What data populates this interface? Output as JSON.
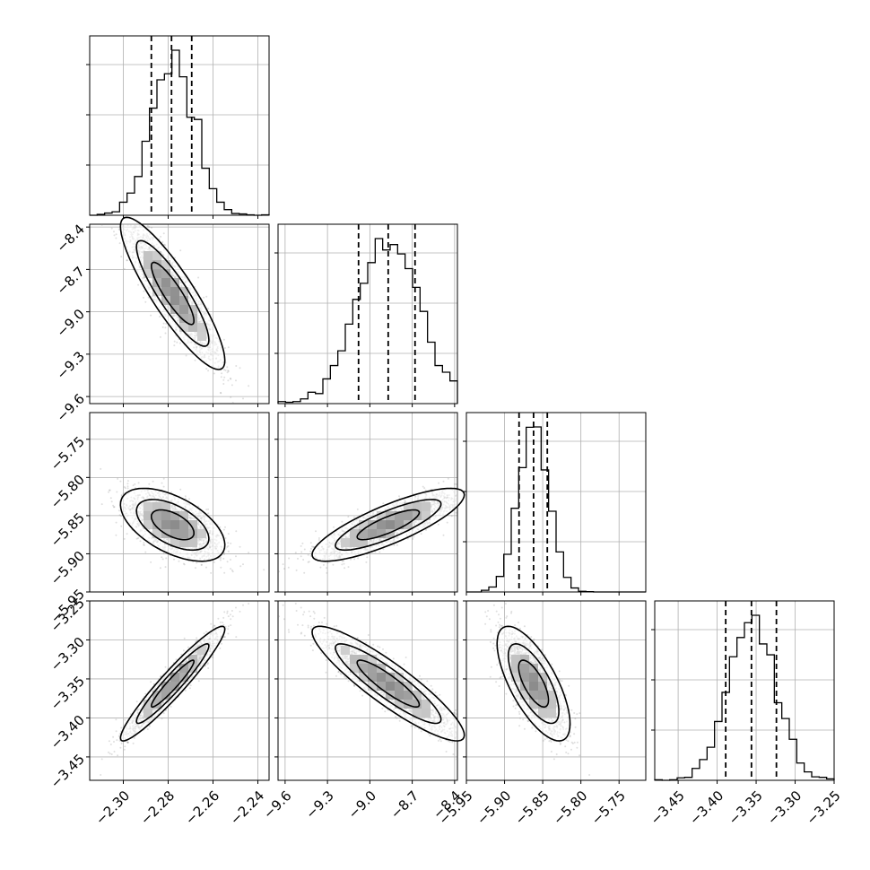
{
  "chart_data": {
    "type": "corner",
    "parameters": [
      {
        "mean": -2.278,
        "std": 0.0095,
        "range": [
          -2.315,
          -2.235
        ],
        "ticks": [
          -2.3,
          -2.28,
          -2.26,
          -2.24
        ],
        "tick_labels": [
          "−2.30",
          "−2.28",
          "−2.26",
          "−2.24"
        ],
        "quantiles": [
          -2.2875,
          -2.2785,
          -2.2695
        ]
      },
      {
        "mean": -8.87,
        "std": 0.22,
        "range": [
          -9.65,
          -8.38
        ],
        "ticks": [
          -9.6,
          -9.3,
          -9.0,
          -8.7,
          -8.4
        ],
        "tick_labels": [
          "−9.6",
          "−9.3",
          "−9.0",
          "−8.7",
          "−8.4"
        ],
        "quantiles": [
          -9.08,
          -8.87,
          -8.68
        ]
      },
      {
        "mean": -5.862,
        "std": 0.0195,
        "range": [
          -5.95,
          -5.715
        ],
        "ticks": [
          -5.95,
          -5.9,
          -5.85,
          -5.8,
          -5.75
        ],
        "tick_labels": [
          "−5.95",
          "−5.90",
          "−5.85",
          "−5.80",
          "−5.75"
        ],
        "quantiles": [
          -5.881,
          -5.862,
          -5.844
        ]
      },
      {
        "mean": -3.356,
        "std": 0.03,
        "range": [
          -3.48,
          -3.25
        ],
        "ticks": [
          -3.45,
          -3.4,
          -3.35,
          -3.3,
          -3.25
        ],
        "tick_labels": [
          "−3.45",
          "−3.40",
          "−3.35",
          "−3.30",
          "−3.25"
        ],
        "quantiles": [
          -3.389,
          -3.356,
          -3.324
        ]
      }
    ],
    "correlations": {
      "1-0": -0.88,
      "2-0": -0.55,
      "2-1": 0.82,
      "3-0": 0.95,
      "3-1": -0.9,
      "3-2": -0.7
    },
    "x_tick_axes": [
      0,
      1,
      2,
      3
    ],
    "y_tick_axes": [
      1,
      2,
      3
    ],
    "grid": true,
    "colors": {
      "histogram": "#000000",
      "scatter": "#808080",
      "density": "#000000"
    }
  }
}
